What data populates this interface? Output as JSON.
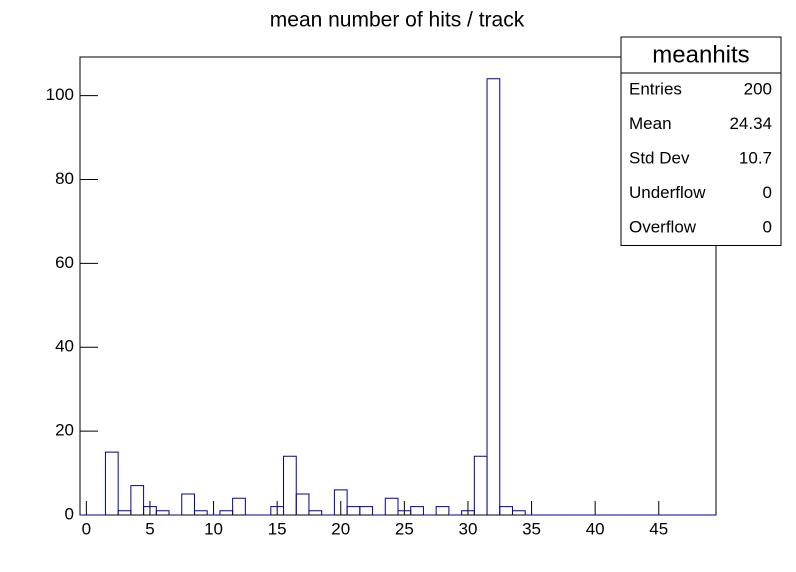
{
  "chart_data": {
    "type": "histogram",
    "title": "mean number of hits / track",
    "bins": [
      -0.5,
      0.5,
      1.5,
      2.5,
      3.5,
      4.5,
      5.5,
      6.5,
      7.5,
      8.5,
      9.5,
      10.5,
      11.5,
      12.5,
      13.5,
      14.5,
      15.5,
      16.5,
      17.5,
      18.5,
      19.5,
      20.5,
      21.5,
      22.5,
      23.5,
      24.5,
      25.5,
      26.5,
      27.5,
      28.5,
      29.5,
      30.5,
      31.5,
      32.5,
      33.5,
      34.5,
      35.5,
      36.5,
      37.5,
      38.5,
      39.5,
      40.5,
      41.5,
      42.5,
      43.5,
      44.5,
      45.5,
      46.5,
      47.5,
      48.5,
      49.5
    ],
    "counts": [
      0,
      0,
      15,
      1,
      7,
      2,
      1,
      0,
      5,
      1,
      0,
      1,
      4,
      0,
      0,
      2,
      14,
      5,
      1,
      0,
      6,
      2,
      2,
      0,
      4,
      1,
      2,
      0,
      2,
      0,
      1,
      14,
      104,
      2,
      1,
      0,
      0,
      0,
      0,
      0,
      0,
      0,
      0,
      0,
      0,
      0,
      0,
      0,
      0,
      0
    ],
    "color": "#000099",
    "xlim": [
      -0.5,
      49.5
    ],
    "xticks": [
      0,
      5,
      10,
      15,
      20,
      25,
      30,
      35,
      40,
      45
    ],
    "ylim": [
      0,
      109.2
    ],
    "yticks": [
      0,
      20,
      40,
      60,
      80,
      100
    ],
    "stats": {
      "title": "meanhits",
      "rows": [
        {
          "label": "Entries",
          "value": 200
        },
        {
          "label": "Mean",
          "value": 24.34
        },
        {
          "label": "Std Dev",
          "value": 10.7
        },
        {
          "label": "Underflow",
          "value": 0
        },
        {
          "label": "Overflow",
          "value": 0
        }
      ]
    }
  }
}
